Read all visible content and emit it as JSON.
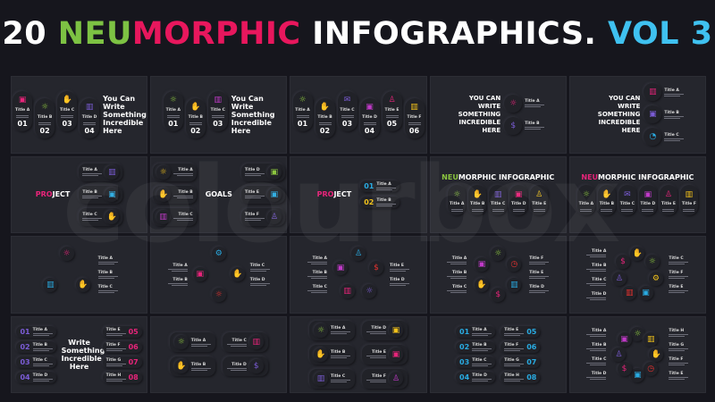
{
  "title": {
    "parts": [
      {
        "text": "20 ",
        "color": "#ffffff"
      },
      {
        "text": "NEU",
        "color": "#7dc243"
      },
      {
        "text": "MORPHIC ",
        "color": "#e8175d"
      },
      {
        "text": "INFOGRAPHICS. ",
        "color": "#ffffff"
      },
      {
        "text": "VOL 3",
        "color": "#3fc1f0"
      }
    ]
  },
  "watermark": "colourbox",
  "icons": {
    "bulb": "☼",
    "handshake": "✋",
    "chart": "▥",
    "briefcase": "▣",
    "people": "♙",
    "dollar": "$",
    "envelope": "✉",
    "gear": "⚙",
    "pie": "◔",
    "clock": "◷"
  },
  "colors": {
    "pink": "#e8247a",
    "green": "#8cc63f",
    "blue": "#29abe2",
    "purple": "#7b5cd6",
    "yellow": "#f2c21b",
    "red": "#e8322f",
    "magenta": "#c13ac9"
  },
  "tiles": [
    {
      "layout": "pills",
      "headline": "You Can Write Something Incredible Here",
      "items": [
        {
          "t": "Title A",
          "n": "01",
          "i": "briefcase",
          "c": "pink"
        },
        {
          "t": "Title B",
          "n": "02",
          "i": "bulb",
          "c": "green"
        },
        {
          "t": "Title C",
          "n": "03",
          "i": "handshake",
          "c": "blue"
        },
        {
          "t": "Title D",
          "n": "04",
          "i": "chart",
          "c": "purple"
        }
      ]
    },
    {
      "layout": "pills",
      "headline": "You Can Write Something Incredible Here",
      "items": [
        {
          "t": "Title A",
          "n": "01",
          "i": "bulb",
          "c": "green"
        },
        {
          "t": "Title B",
          "n": "02",
          "i": "handshake",
          "c": "blue"
        },
        {
          "t": "Title C",
          "n": "03",
          "i": "chart",
          "c": "magenta"
        }
      ]
    },
    {
      "layout": "pills",
      "items": [
        {
          "t": "Title A",
          "n": "01",
          "i": "bulb",
          "c": "green"
        },
        {
          "t": "Title B",
          "n": "02",
          "i": "handshake",
          "c": "blue"
        },
        {
          "t": "Title C",
          "n": "03",
          "i": "envelope",
          "c": "purple"
        },
        {
          "t": "Title D",
          "n": "04",
          "i": "briefcase",
          "c": "magenta"
        },
        {
          "t": "Title E",
          "n": "05",
          "i": "people",
          "c": "pink"
        },
        {
          "t": "Title F",
          "n": "06",
          "i": "chart",
          "c": "yellow"
        }
      ]
    },
    {
      "layout": "list",
      "upper": true,
      "headline": "You Can Write Something Incredible Here",
      "items": [
        {
          "t": "Title A",
          "i": "bulb",
          "c": "pink"
        },
        {
          "t": "Title B",
          "i": "dollar",
          "c": "purple"
        }
      ]
    },
    {
      "layout": "list",
      "upper": true,
      "headline": "You Can Write Something Incredible Here",
      "items": [
        {
          "t": "Title A",
          "i": "chart",
          "c": "pink"
        },
        {
          "t": "Title B",
          "i": "briefcase",
          "c": "purple"
        },
        {
          "t": "Title C",
          "i": "pie",
          "c": "blue"
        }
      ]
    },
    {
      "layout": "hub",
      "hlA": "PRO",
      "hlB": "JECT",
      "hlColor": "pink",
      "left": [],
      "right": [
        {
          "t": "Title A",
          "i": "chart",
          "c": "purple"
        },
        {
          "t": "Title B",
          "i": "briefcase",
          "c": "blue"
        },
        {
          "t": "Title C",
          "i": "handshake",
          "c": "green"
        }
      ]
    },
    {
      "layout": "hub",
      "hlA": "",
      "hlB": "GOALS",
      "hlColor": "pink",
      "left": [
        {
          "t": "Title A",
          "i": "bulb",
          "c": "yellow"
        },
        {
          "t": "Title B",
          "i": "handshake",
          "c": "red"
        },
        {
          "t": "Title C",
          "i": "chart",
          "c": "magenta"
        }
      ],
      "right": [
        {
          "t": "Title D",
          "i": "briefcase",
          "c": "green"
        },
        {
          "t": "Title E",
          "i": "briefcase",
          "c": "blue"
        },
        {
          "t": "Title F",
          "i": "people",
          "c": "purple"
        }
      ]
    },
    {
      "layout": "hub",
      "hlA": "PRO",
      "hlB": "JECT",
      "hlColor": "pink",
      "left": [],
      "right": [
        {
          "t": "Title A",
          "n": "01",
          "c": "blue"
        },
        {
          "t": "Title B",
          "n": "02",
          "c": "yellow"
        }
      ]
    },
    {
      "layout": "header",
      "hA": "NEU",
      "hB": "MORPHIC INFOGRAPHIC",
      "hColor": "green",
      "items": [
        {
          "t": "Title A",
          "i": "bulb",
          "c": "green"
        },
        {
          "t": "Title B",
          "i": "handshake",
          "c": "blue"
        },
        {
          "t": "Title C",
          "i": "chart",
          "c": "purple"
        },
        {
          "t": "Title D",
          "i": "briefcase",
          "c": "pink"
        },
        {
          "t": "Title E",
          "i": "people",
          "c": "yellow"
        }
      ]
    },
    {
      "layout": "header",
      "hA": "NEU",
      "hB": "MORPHIC INFOGRAPHIC",
      "hColor": "pink",
      "items": [
        {
          "t": "Title A",
          "i": "bulb",
          "c": "green"
        },
        {
          "t": "Title B",
          "i": "handshake",
          "c": "blue"
        },
        {
          "t": "Title C",
          "i": "envelope",
          "c": "purple"
        },
        {
          "t": "Title D",
          "i": "briefcase",
          "c": "magenta"
        },
        {
          "t": "Title E",
          "i": "people",
          "c": "pink"
        },
        {
          "t": "Title F",
          "i": "chart",
          "c": "yellow"
        }
      ]
    },
    {
      "layout": "ring",
      "left": [],
      "icons": [
        {
          "i": "bulb",
          "c": "pink"
        },
        {
          "i": "handshake",
          "c": "purple"
        },
        {
          "i": "chart",
          "c": "blue"
        }
      ],
      "right": [
        "Title A",
        "Title B",
        "Title C"
      ]
    },
    {
      "layout": "ring",
      "left": [
        "Title A",
        "Title B"
      ],
      "icons": [
        {
          "i": "gear",
          "c": "blue"
        },
        {
          "i": "handshake",
          "c": "purple"
        },
        {
          "i": "bulb",
          "c": "red"
        },
        {
          "i": "briefcase",
          "c": "pink"
        }
      ],
      "right": [
        "Title C",
        "Title D"
      ]
    },
    {
      "layout": "ring",
      "left": [
        "Title A",
        "Title B",
        "Title C"
      ],
      "icons": [
        {
          "i": "people",
          "c": "blue"
        },
        {
          "i": "dollar",
          "c": "red"
        },
        {
          "i": "bulb",
          "c": "purple"
        },
        {
          "i": "chart",
          "c": "pink"
        },
        {
          "i": "briefcase",
          "c": "magenta"
        }
      ],
      "right": [
        "Title E",
        "Title D"
      ]
    },
    {
      "layout": "ring",
      "left": [
        "Title A",
        "Title B",
        "Title C"
      ],
      "icons": [
        {
          "i": "bulb",
          "c": "green"
        },
        {
          "i": "clock",
          "c": "red"
        },
        {
          "i": "chart",
          "c": "blue"
        },
        {
          "i": "dollar",
          "c": "pink"
        },
        {
          "i": "handshake",
          "c": "purple"
        },
        {
          "i": "briefcase",
          "c": "magenta"
        }
      ],
      "right": [
        "Title F",
        "Title E",
        "Title D"
      ]
    },
    {
      "layout": "ring",
      "left": [
        "Title A",
        "Title B",
        "Title C",
        "Title D"
      ],
      "icons": [
        {
          "i": "handshake",
          "c": "blue"
        },
        {
          "i": "bulb",
          "c": "green"
        },
        {
          "i": "gear",
          "c": "yellow"
        },
        {
          "i": "briefcase",
          "c": "blue"
        },
        {
          "i": "chart",
          "c": "red"
        },
        {
          "i": "people",
          "c": "purple"
        },
        {
          "i": "dollar",
          "c": "pink"
        }
      ],
      "right": [
        "Title C",
        "Title F",
        "Title E"
      ]
    },
    {
      "layout": "numbered",
      "headline": "Write Something Incredible Here",
      "numColor": "purple",
      "numColor2": "pink",
      "left": [
        {
          "n": "01",
          "t": "Title A"
        },
        {
          "n": "02",
          "t": "Title B"
        },
        {
          "n": "03",
          "t": "Title C"
        },
        {
          "n": "04",
          "t": "Title D"
        }
      ],
      "right": [
        {
          "n": "05",
          "t": "Title E"
        },
        {
          "n": "06",
          "t": "Title F"
        },
        {
          "n": "07",
          "t": "Title G"
        },
        {
          "n": "08",
          "t": "Title H"
        }
      ]
    },
    {
      "layout": "pairs",
      "left": [
        {
          "t": "Title A",
          "i": "bulb",
          "c": "green"
        },
        {
          "t": "Title B",
          "i": "handshake",
          "c": "blue"
        }
      ],
      "right": [
        {
          "t": "Title C",
          "i": "chart",
          "c": "pink"
        },
        {
          "t": "Title D",
          "i": "dollar",
          "c": "purple"
        }
      ]
    },
    {
      "layout": "pairs",
      "left": [
        {
          "t": "Title A",
          "i": "bulb",
          "c": "green"
        },
        {
          "t": "Title B",
          "i": "handshake",
          "c": "blue"
        },
        {
          "t": "Title C",
          "i": "chart",
          "c": "purple"
        }
      ],
      "right": [
        {
          "t": "Title D",
          "i": "briefcase",
          "c": "yellow"
        },
        {
          "t": "Title E",
          "i": "briefcase",
          "c": "pink"
        },
        {
          "t": "Title F",
          "i": "people",
          "c": "magenta"
        }
      ]
    },
    {
      "layout": "numbered",
      "headline": "",
      "numColor": "blue",
      "numColor2": "blue",
      "left": [
        {
          "n": "01",
          "t": "Title A"
        },
        {
          "n": "02",
          "t": "Title B"
        },
        {
          "n": "03",
          "t": "Title C"
        },
        {
          "n": "04",
          "t": "Title D"
        }
      ],
      "right": [
        {
          "n": "05",
          "t": "Title E"
        },
        {
          "n": "06",
          "t": "Title F"
        },
        {
          "n": "07",
          "t": "Title G"
        },
        {
          "n": "08",
          "t": "Title H"
        }
      ]
    },
    {
      "layout": "ring",
      "left": [
        "Title A",
        "Title B",
        "Title C",
        "Title D"
      ],
      "icons": [
        {
          "i": "bulb",
          "c": "green"
        },
        {
          "i": "chart",
          "c": "yellow"
        },
        {
          "i": "handshake",
          "c": "blue"
        },
        {
          "i": "clock",
          "c": "red"
        },
        {
          "i": "briefcase",
          "c": "blue"
        },
        {
          "i": "dollar",
          "c": "pink"
        },
        {
          "i": "people",
          "c": "purple"
        },
        {
          "i": "briefcase",
          "c": "magenta"
        }
      ],
      "right": [
        "Title H",
        "Title G",
        "Title F",
        "Title E"
      ]
    }
  ]
}
